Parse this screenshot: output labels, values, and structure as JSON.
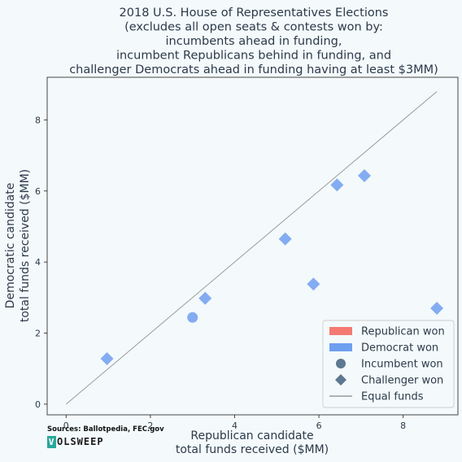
{
  "chart_data": {
    "type": "scatter",
    "title_lines": [
      "2018 U.S. House of Representatives Elections",
      "(excludes all open seats & contests won by:",
      "incumbents ahead in funding,",
      "incumbent Republicans behind in funding, and",
      "challenger Democrats ahead in funding having at least $3MM)"
    ],
    "xlabel_lines": [
      "Republican candidate",
      "total funds received ($MM)"
    ],
    "ylabel_lines": [
      "Democratic candidate",
      "total funds received ($MM)"
    ],
    "xlim": [
      -0.45,
      9.3
    ],
    "ylim": [
      -0.3,
      9.2
    ],
    "x_ticks": [
      0,
      2,
      4,
      6,
      8
    ],
    "y_ticks": [
      0,
      2,
      4,
      6,
      8
    ],
    "x_tick_labels": [
      "0",
      "2",
      "4",
      "6",
      "8"
    ],
    "y_tick_labels": [
      "0",
      "2",
      "4",
      "6",
      "8"
    ],
    "grid": false,
    "equal_funds_line": {
      "x": [
        0,
        8.8
      ],
      "y": [
        0,
        8.8
      ]
    },
    "series": [
      {
        "color": "#6e9ff0",
        "points": [
          {
            "x": 0.97,
            "y": 1.28,
            "marker": "diamond"
          },
          {
            "x": 3.0,
            "y": 2.44,
            "marker": "circle"
          },
          {
            "x": 3.3,
            "y": 2.98,
            "marker": "diamond"
          },
          {
            "x": 5.2,
            "y": 4.65,
            "marker": "diamond"
          },
          {
            "x": 5.87,
            "y": 3.38,
            "marker": "diamond"
          },
          {
            "x": 6.43,
            "y": 6.17,
            "marker": "diamond"
          },
          {
            "x": 7.08,
            "y": 6.43,
            "marker": "diamond"
          },
          {
            "x": 8.8,
            "y": 2.7,
            "marker": "diamond"
          }
        ]
      }
    ],
    "legend": {
      "position": "bottom-right",
      "entries": [
        {
          "label": "Republican won",
          "kind": "patch",
          "color": "#f47a72"
        },
        {
          "label": "Democrat won",
          "kind": "patch",
          "color": "#6e9ff0"
        },
        {
          "label": "Incumbent won",
          "kind": "circle",
          "color": "#5e7891"
        },
        {
          "label": "Challenger won",
          "kind": "diamond",
          "color": "#5e7891"
        },
        {
          "label": "Equal funds",
          "kind": "line",
          "color": "#9a9a9a"
        }
      ]
    }
  },
  "footer": {
    "sources": "Sources: Ballotpedia, FEC.gov",
    "logo_first": "V",
    "logo_rest": "OLSWEEP"
  }
}
